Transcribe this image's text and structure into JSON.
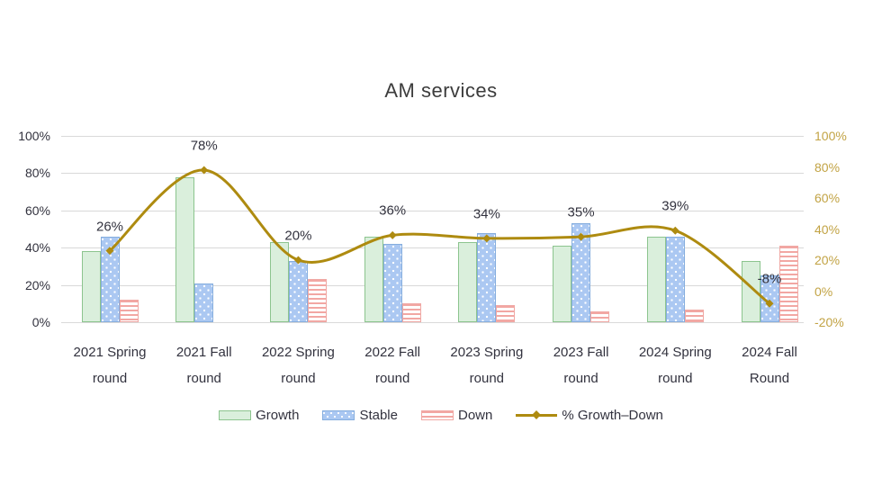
{
  "title": "AM services",
  "chart_data": {
    "type": "combo-bar-line",
    "title": "AM services",
    "categories": [
      {
        "line1": "2021 Spring",
        "line2": "round"
      },
      {
        "line1": "2021 Fall",
        "line2": "round"
      },
      {
        "line1": "2022 Spring",
        "line2": "round"
      },
      {
        "line1": "2022 Fall",
        "line2": "round"
      },
      {
        "line1": "2023 Spring",
        "line2": "round"
      },
      {
        "line1": "2023 Fall",
        "line2": "round"
      },
      {
        "line1": "2024 Spring",
        "line2": "round"
      },
      {
        "line1": "2024 Fall",
        "line2": "Round"
      }
    ],
    "bar_series": [
      {
        "name": "Growth",
        "pattern": "solid",
        "values": [
          38,
          78,
          43,
          46,
          43,
          41,
          46,
          33
        ]
      },
      {
        "name": "Stable",
        "pattern": "dots",
        "values": [
          46,
          21,
          33,
          42,
          48,
          53,
          46,
          25
        ]
      },
      {
        "name": "Down",
        "pattern": "stripes",
        "values": [
          12,
          0,
          23,
          10,
          9,
          6,
          7,
          41
        ]
      }
    ],
    "line_series": {
      "name": "% Growth–Down",
      "values": [
        26,
        78,
        20,
        36,
        34,
        35,
        39,
        -8
      ],
      "labels": [
        "26%",
        "78%",
        "20%",
        "36%",
        "34%",
        "35%",
        "39%",
        "-8%"
      ]
    },
    "axes": {
      "left": {
        "min": 0,
        "max": 100,
        "ticks": [
          "0%",
          "20%",
          "40%",
          "60%",
          "80%",
          "100%"
        ]
      },
      "right": {
        "min": -20,
        "max": 100,
        "ticks": [
          "-20%",
          "0%",
          "20%",
          "40%",
          "60%",
          "80%",
          "100%"
        ]
      }
    },
    "grid": true,
    "legend_position": "bottom"
  },
  "legend": {
    "growth_label": "Growth",
    "stable_label": "Stable",
    "down_label": "Down",
    "line_label": "% Growth–Down"
  },
  "colors": {
    "growth_fill": "#daefdc",
    "growth_border": "#8cc48e",
    "stable_fill": "#abc8f2",
    "stable_border": "#86aede",
    "down_stripe": "#f2a7a3",
    "down_border": "#f0a8a4",
    "line": "#ae8b10",
    "right_axis_text": "#c2a344",
    "left_axis_text": "#32323e",
    "grid": "#d9d9d9",
    "title_text": "#3c3c3c"
  }
}
